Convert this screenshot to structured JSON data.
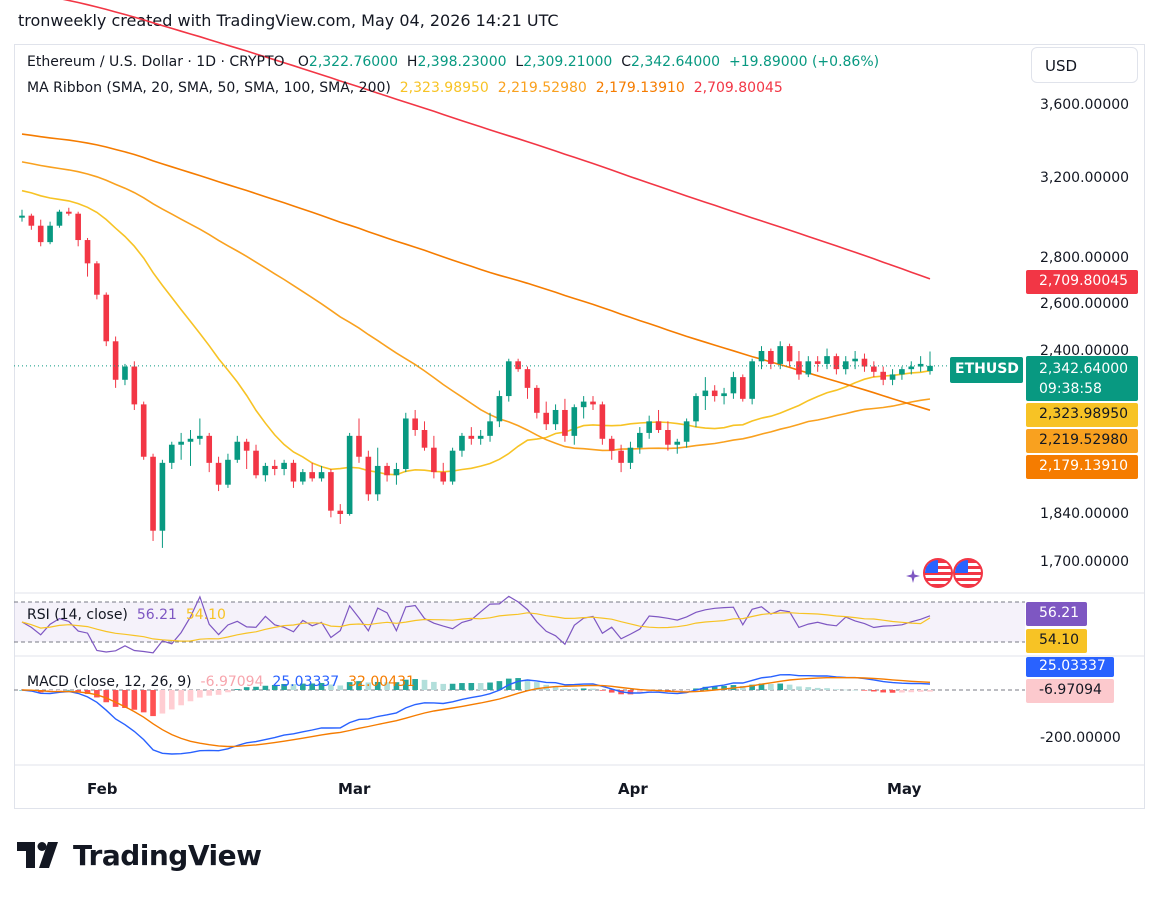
{
  "header": {
    "caption": "tronweekly created with TradingView.com, May 04, 2026 14:21 UTC"
  },
  "legend": {
    "symbol": "Ethereum / U.S. Dollar · 1D · CRYPTO",
    "o_label": "O",
    "o_value": "2,322.76000",
    "h_label": "H",
    "h_value": "2,398.23000",
    "l_label": "L",
    "l_value": "2,309.21000",
    "c_label": "C",
    "c_value": "2,342.64000",
    "change": "+19.89000 (+0.86%)",
    "ma_title": "MA Ribbon (SMA, 20, SMA, 50, SMA, 100, SMA, 200)",
    "ma_values": [
      "2,323.98950",
      "2,219.52980",
      "2,179.13910",
      "2,709.80045"
    ],
    "rsi_title": "RSI (14, close)",
    "rsi_value": "56.21",
    "rsi_ma_value": "54.10",
    "macd_title": "MACD (close, 12, 26, 9)",
    "macd_hist": "-6.97094",
    "macd_line": "25.03337",
    "macd_signal": "32.00431"
  },
  "currency_button": "USD",
  "price_axis": {
    "labels": [
      "3,600.00000",
      "3,200.00000",
      "2,800.00000",
      "2,600.00000",
      "2,400.00000",
      "1,840.00000",
      "1,700.00000"
    ],
    "tags": {
      "sma200": "2,709.80045",
      "last": "2,342.64000",
      "countdown": "09:38:58",
      "sma20": "2,323.98950",
      "sma50": "2,219.52980",
      "sma100": "2,179.13910",
      "rsi": "56.21",
      "rsi_ma": "54.10",
      "macd_line": "25.03337",
      "macd_hist": "-6.97094",
      "macd_axis": "-200.00000"
    },
    "ticker": "ETHUSD"
  },
  "time_axis": {
    "labels": [
      "Feb",
      "Mar",
      "Apr",
      "May"
    ]
  },
  "branding": {
    "logo_text": "TradingView"
  },
  "colors": {
    "up": "#089981",
    "down": "#f23645",
    "sma20": "#f7c325",
    "sma50": "#f9a11f",
    "sma100": "#f57c00",
    "sma200": "#f23645",
    "rsi": "#7e57c2",
    "rsi_ma": "#f7c325",
    "macd": "#2962ff",
    "signal": "#f57c00"
  },
  "chart_data": {
    "type": "candlestick",
    "timeframe": "1D",
    "symbol": "ETHUSD",
    "candles": [
      [
        3000,
        3040,
        2980,
        3010
      ],
      [
        3010,
        3020,
        2940,
        2960
      ],
      [
        2960,
        2990,
        2860,
        2880
      ],
      [
        2880,
        2980,
        2870,
        2960
      ],
      [
        2960,
        3040,
        2950,
        3030
      ],
      [
        3030,
        3050,
        3010,
        3020
      ],
      [
        3020,
        3030,
        2860,
        2890
      ],
      [
        2890,
        2900,
        2720,
        2780
      ],
      [
        2780,
        2790,
        2620,
        2640
      ],
      [
        2640,
        2650,
        2420,
        2440
      ],
      [
        2440,
        2460,
        2260,
        2290
      ],
      [
        2290,
        2350,
        2270,
        2340
      ],
      [
        2340,
        2360,
        2180,
        2200
      ],
      [
        2200,
        2210,
        2010,
        2020
      ],
      [
        2020,
        2030,
        1760,
        1790
      ],
      [
        1790,
        2010,
        1740,
        2000
      ],
      [
        2000,
        2070,
        1980,
        2060
      ],
      [
        2060,
        2100,
        2010,
        2070
      ],
      [
        2070,
        2110,
        1990,
        2080
      ],
      [
        2080,
        2150,
        2060,
        2090
      ],
      [
        2090,
        2100,
        1970,
        2000
      ],
      [
        2000,
        2020,
        1910,
        1930
      ],
      [
        1930,
        2030,
        1920,
        2010
      ],
      [
        2010,
        2090,
        2000,
        2070
      ],
      [
        2070,
        2080,
        1980,
        2040
      ],
      [
        2040,
        2060,
        1950,
        1960
      ],
      [
        1960,
        2000,
        1940,
        1990
      ],
      [
        1990,
        2010,
        1960,
        1980
      ],
      [
        1980,
        2010,
        1960,
        2000
      ],
      [
        2000,
        2010,
        1920,
        1940
      ],
      [
        1940,
        1980,
        1930,
        1970
      ],
      [
        1970,
        2000,
        1940,
        1950
      ],
      [
        1950,
        1990,
        1940,
        1970
      ],
      [
        1970,
        1980,
        1830,
        1850
      ],
      [
        1850,
        1870,
        1810,
        1840
      ],
      [
        1840,
        2100,
        1835,
        2090
      ],
      [
        2090,
        2150,
        2000,
        2020
      ],
      [
        2020,
        2040,
        1880,
        1900
      ],
      [
        1900,
        2050,
        1880,
        1990
      ],
      [
        1990,
        2000,
        1940,
        1960
      ],
      [
        1960,
        2000,
        1930,
        1980
      ],
      [
        1980,
        2170,
        1970,
        2150
      ],
      [
        2150,
        2180,
        2090,
        2110
      ],
      [
        2110,
        2140,
        2040,
        2050
      ],
      [
        2050,
        2090,
        1950,
        1970
      ],
      [
        1970,
        2000,
        1930,
        1940
      ],
      [
        1940,
        2050,
        1930,
        2040
      ],
      [
        2040,
        2100,
        2020,
        2090
      ],
      [
        2090,
        2120,
        2060,
        2080
      ],
      [
        2080,
        2110,
        2060,
        2090
      ],
      [
        2090,
        2170,
        2070,
        2140
      ],
      [
        2140,
        2250,
        2120,
        2230
      ],
      [
        2230,
        2370,
        2210,
        2360
      ],
      [
        2360,
        2370,
        2320,
        2330
      ],
      [
        2330,
        2340,
        2220,
        2260
      ],
      [
        2260,
        2270,
        2150,
        2170
      ],
      [
        2170,
        2210,
        2110,
        2130
      ],
      [
        2130,
        2200,
        2110,
        2180
      ],
      [
        2180,
        2220,
        2070,
        2090
      ],
      [
        2090,
        2200,
        2060,
        2190
      ],
      [
        2190,
        2230,
        2150,
        2210
      ],
      [
        2210,
        2230,
        2180,
        2200
      ],
      [
        2200,
        2210,
        2060,
        2080
      ],
      [
        2080,
        2090,
        2010,
        2040
      ],
      [
        2040,
        2060,
        1970,
        2000
      ],
      [
        2000,
        2070,
        1980,
        2050
      ],
      [
        2050,
        2120,
        2030,
        2100
      ],
      [
        2100,
        2160,
        2080,
        2140
      ],
      [
        2140,
        2180,
        2100,
        2110
      ],
      [
        2110,
        2140,
        2040,
        2060
      ],
      [
        2060,
        2080,
        2030,
        2070
      ],
      [
        2070,
        2150,
        2050,
        2140
      ],
      [
        2140,
        2240,
        2120,
        2230
      ],
      [
        2230,
        2300,
        2180,
        2250
      ],
      [
        2250,
        2270,
        2210,
        2230
      ],
      [
        2230,
        2260,
        2200,
        2240
      ],
      [
        2240,
        2320,
        2220,
        2300
      ],
      [
        2300,
        2310,
        2210,
        2220
      ],
      [
        2220,
        2370,
        2200,
        2360
      ],
      [
        2360,
        2420,
        2330,
        2400
      ],
      [
        2400,
        2410,
        2330,
        2350
      ],
      [
        2350,
        2440,
        2330,
        2420
      ],
      [
        2420,
        2430,
        2340,
        2360
      ],
      [
        2360,
        2400,
        2290,
        2310
      ],
      [
        2310,
        2380,
        2300,
        2360
      ],
      [
        2360,
        2380,
        2320,
        2350
      ],
      [
        2350,
        2410,
        2330,
        2380
      ],
      [
        2380,
        2390,
        2310,
        2330
      ],
      [
        2330,
        2380,
        2310,
        2360
      ],
      [
        2360,
        2400,
        2330,
        2370
      ],
      [
        2370,
        2390,
        2320,
        2340
      ],
      [
        2340,
        2360,
        2300,
        2320
      ],
      [
        2320,
        2340,
        2270,
        2290
      ],
      [
        2290,
        2330,
        2270,
        2310
      ],
      [
        2310,
        2340,
        2290,
        2330
      ],
      [
        2330,
        2360,
        2310,
        2340
      ],
      [
        2340,
        2380,
        2320,
        2350
      ],
      [
        2322.76,
        2398.23,
        2309.21,
        2342.64
      ]
    ],
    "sma20_last": 2323.9895,
    "sma50_last": 2219.5298,
    "sma100_last": 2179.1391,
    "sma200_last": 2709.80045,
    "rsi_last": 56.21,
    "rsi_ma_last": 54.1,
    "macd_line_last": 25.03337,
    "macd_signal_last": 32.00431,
    "macd_hist_last": -6.97094,
    "y_axis": "price (USD)",
    "x_axis": "date"
  }
}
